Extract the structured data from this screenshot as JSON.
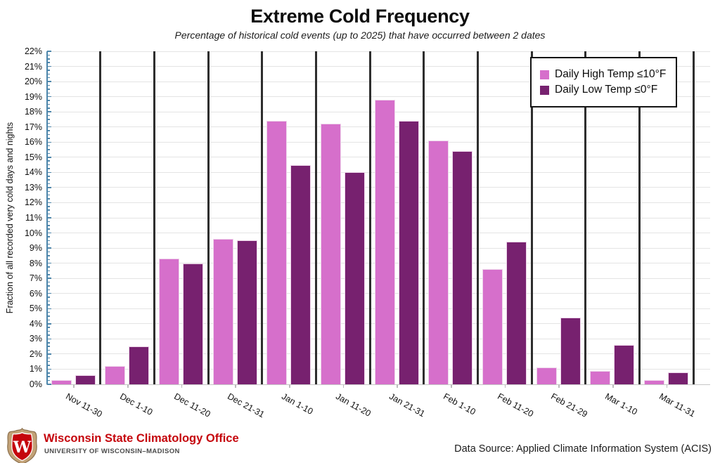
{
  "title": "Extreme Cold Frequency",
  "subtitle": "Percentage of historical cold events (up to 2025) that have occurred between 2 dates",
  "chart_data": {
    "type": "bar",
    "categories": [
      "Nov 11-30",
      "Dec 1-10",
      "Dec 11-20",
      "Dec 21-31",
      "Jan 1-10",
      "Jan 11-20",
      "Jan 21-31",
      "Feb 1-10",
      "Feb 11-20",
      "Feb 21-29",
      "Mar 1-10",
      "Mar 11-31"
    ],
    "series": [
      {
        "name": "Daily High Temp ≤10°F",
        "color": "#d66fcb",
        "values": [
          0.3,
          1.2,
          8.3,
          9.6,
          17.4,
          17.2,
          18.8,
          16.1,
          7.6,
          1.1,
          0.9,
          0.3
        ]
      },
      {
        "name": "Daily Low Temp ≤0°F",
        "color": "#77216f",
        "values": [
          0.6,
          2.5,
          8.0,
          9.5,
          14.5,
          14.0,
          17.4,
          15.4,
          9.4,
          4.4,
          2.6,
          0.8
        ]
      }
    ],
    "xlabel": "",
    "ylabel": "Fraction of all recorded very cold days and nights",
    "ylim": [
      0,
      22
    ],
    "ytick_step": 1,
    "ytick_labels": [
      "0%",
      "1%",
      "2%",
      "3%",
      "4%",
      "5%",
      "6%",
      "7%",
      "8%",
      "9%",
      "10%",
      "11%",
      "12%",
      "13%",
      "14%",
      "15%",
      "16%",
      "17%",
      "18%",
      "19%",
      "20%",
      "21%",
      "22%"
    ],
    "grid": true,
    "legend_position": "top-right",
    "accent_colors": {
      "axis_ruler": "#4d86ab",
      "separator": "#2e2e2e",
      "gridline": "#e4e4e4"
    }
  },
  "footer": {
    "org_name": "Wisconsin State Climatology Office",
    "org_sub": "UNIVERSITY OF WISCONSIN–MADISON",
    "crest_icon": "uw-madison-crest",
    "data_source": "Data Source: Applied Climate Information System (ACIS)"
  }
}
